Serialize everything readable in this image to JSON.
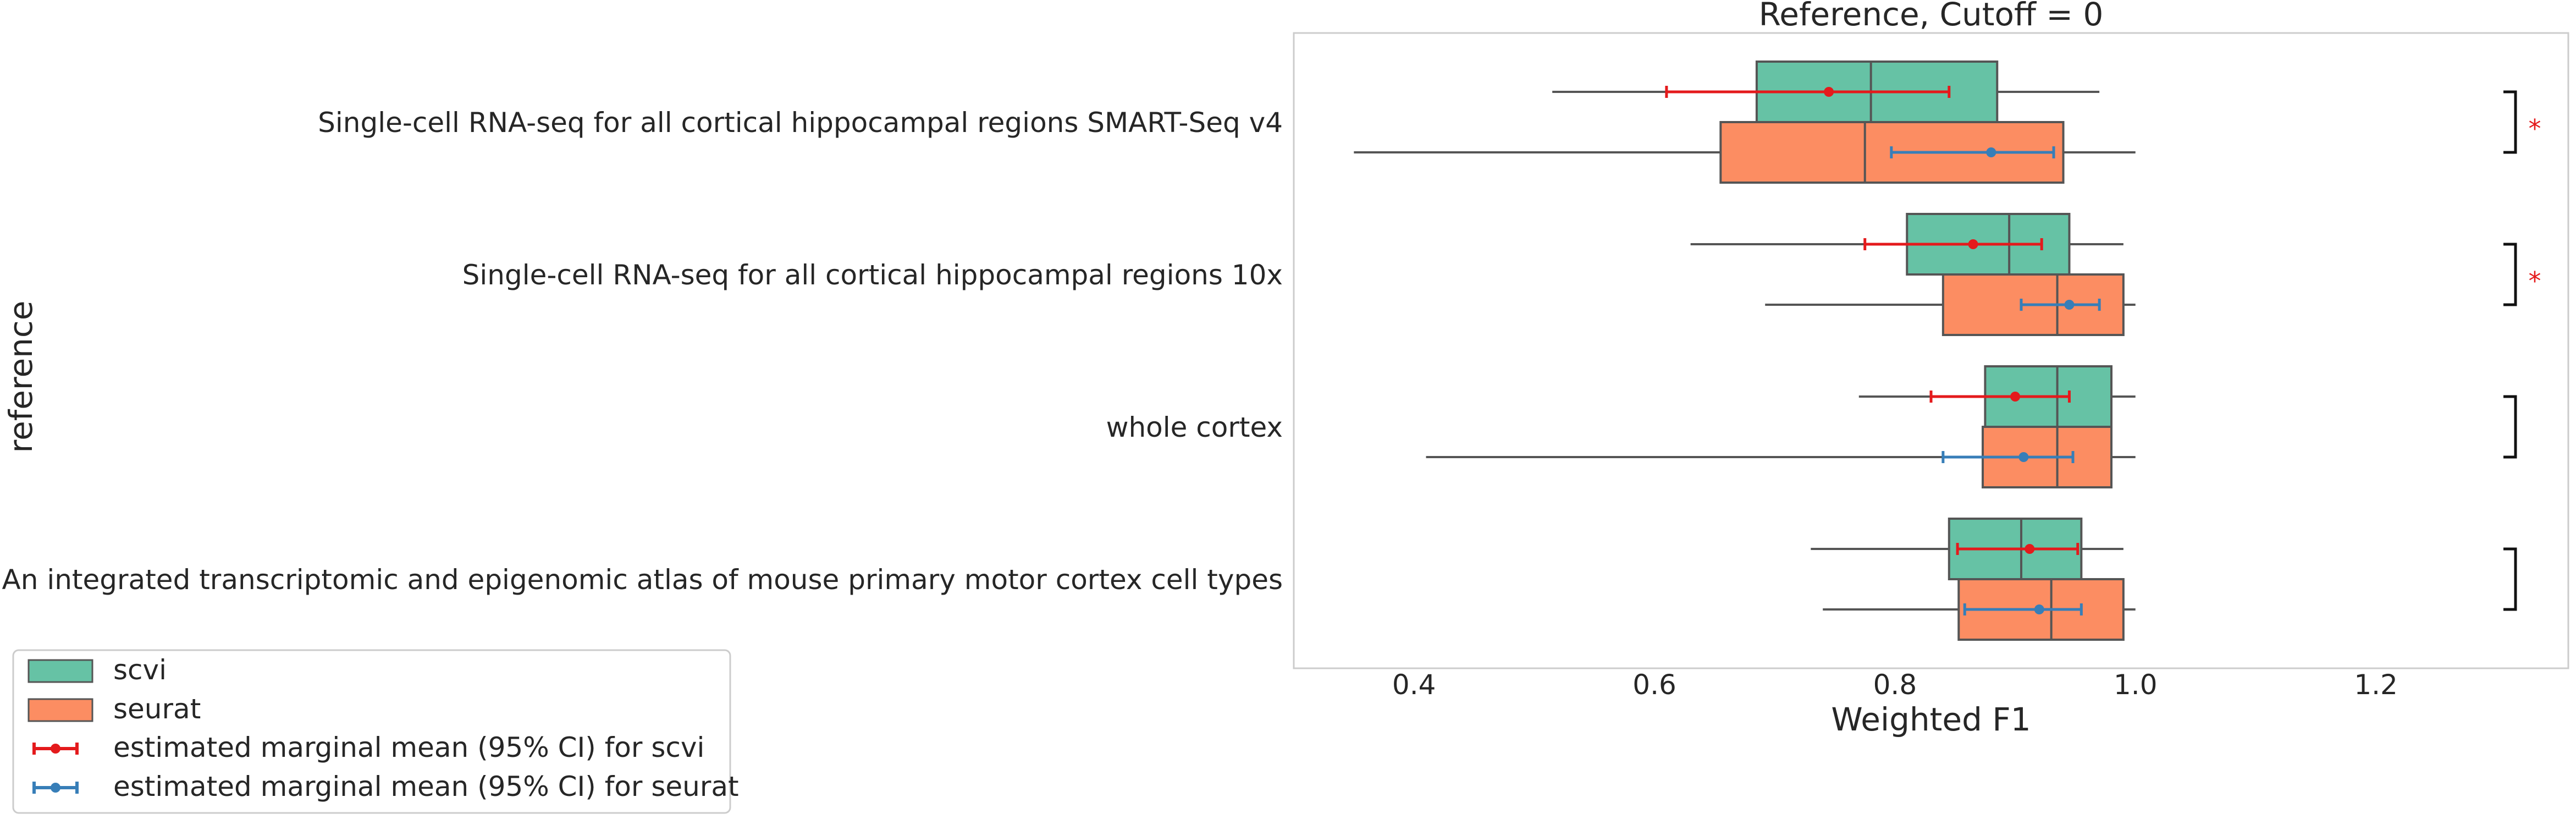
{
  "chart_data": {
    "type": "boxplot",
    "orientation": "horizontal",
    "title": "Reference, Cutoff = 0",
    "xlabel": "Weighted F1",
    "ylabel": "reference",
    "xlim": [
      0.3,
      1.36
    ],
    "xticks": [
      "0.4",
      "0.6",
      "0.8",
      "1.0",
      "1.2"
    ],
    "grid": false,
    "legend_position": "bottom-left",
    "categories": [
      "Single-cell RNA-seq for all cortical  hippocampal regions SMART-Seq v4",
      "Single-cell RNA-seq for all cortical  hippocampal regions 10x",
      "whole cortex",
      "An integrated transcriptomic and epigenomic atlas of mouse primary motor cortex cell types"
    ],
    "series": [
      {
        "name": "scvi",
        "color": "#66c2a5",
        "boxes": [
          {
            "whislo": 0.515,
            "q1": 0.685,
            "med": 0.78,
            "q3": 0.885,
            "whishi": 0.97
          },
          {
            "whislo": 0.63,
            "q1": 0.81,
            "med": 0.895,
            "q3": 0.945,
            "whishi": 0.99
          },
          {
            "whislo": 0.77,
            "q1": 0.875,
            "med": 0.935,
            "q3": 0.98,
            "whishi": 1.0
          },
          {
            "whislo": 0.73,
            "q1": 0.845,
            "med": 0.905,
            "q3": 0.955,
            "whishi": 0.99
          }
        ]
      },
      {
        "name": "seurat",
        "color": "#fc8d62",
        "boxes": [
          {
            "whislo": 0.35,
            "q1": 0.655,
            "med": 0.775,
            "q3": 0.94,
            "whishi": 1.0
          },
          {
            "whislo": 0.692,
            "q1": 0.84,
            "med": 0.935,
            "q3": 0.99,
            "whishi": 1.0
          },
          {
            "whislo": 0.41,
            "q1": 0.873,
            "med": 0.935,
            "q3": 0.98,
            "whishi": 1.0
          },
          {
            "whislo": 0.74,
            "q1": 0.853,
            "med": 0.93,
            "q3": 0.99,
            "whishi": 1.0
          }
        ]
      }
    ],
    "marginal_means": [
      {
        "name": "estimated marginal mean (95% CI) for scvi",
        "color": "#e41a1c",
        "points": [
          {
            "mean": 0.745,
            "lo": 0.61,
            "hi": 0.845
          },
          {
            "mean": 0.865,
            "lo": 0.775,
            "hi": 0.922
          },
          {
            "mean": 0.9,
            "lo": 0.83,
            "hi": 0.945
          },
          {
            "mean": 0.912,
            "lo": 0.852,
            "hi": 0.952
          }
        ]
      },
      {
        "name": "estimated marginal mean (95% CI) for seurat",
        "color": "#377eb8",
        "points": [
          {
            "mean": 0.88,
            "lo": 0.797,
            "hi": 0.932
          },
          {
            "mean": 0.945,
            "lo": 0.905,
            "hi": 0.97
          },
          {
            "mean": 0.907,
            "lo": 0.84,
            "hi": 0.948
          },
          {
            "mean": 0.92,
            "lo": 0.858,
            "hi": 0.955
          }
        ]
      }
    ],
    "significance": [
      "*",
      "*",
      "",
      ""
    ],
    "significance_color": "#e41a1c",
    "legend": [
      "scvi",
      "seurat",
      "estimated marginal mean (95% CI) for scvi",
      "estimated marginal mean (95% CI) for seurat"
    ]
  }
}
